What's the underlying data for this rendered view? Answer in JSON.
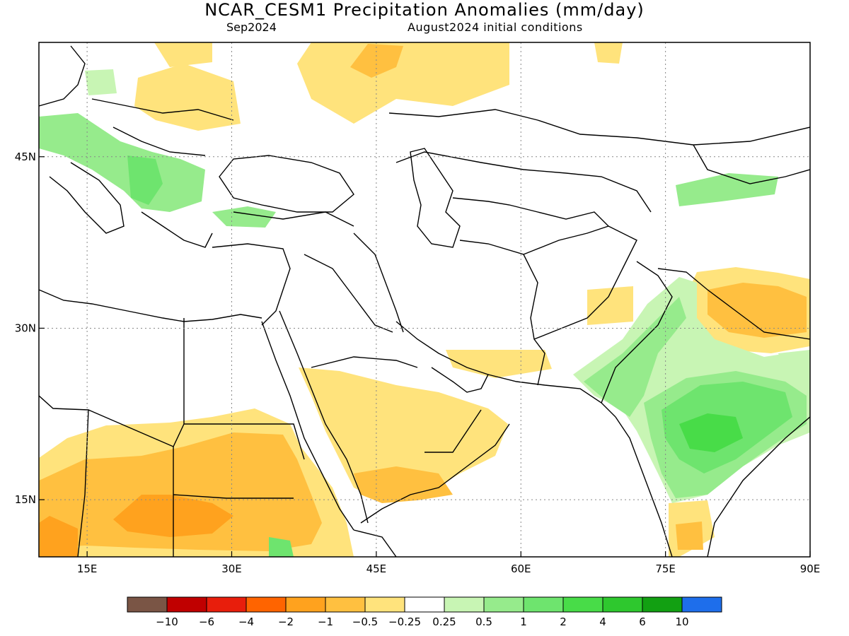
{
  "header": {
    "title": "NCAR_CESM1 Precipitation Anomalies (mm/day)",
    "valid": "Sep2024",
    "init": "August2024 initial conditions"
  },
  "map": {
    "lon_range": [
      10,
      90
    ],
    "lat_range": [
      10,
      55
    ],
    "x_ticks": [
      {
        "lon": 15,
        "label": "15E"
      },
      {
        "lon": 30,
        "label": "30E"
      },
      {
        "lon": 45,
        "label": "45E"
      },
      {
        "lon": 60,
        "label": "60E"
      },
      {
        "lon": 75,
        "label": "75E"
      },
      {
        "lon": 90,
        "label": "90E"
      }
    ],
    "y_ticks": [
      {
        "lat": 45,
        "label": "45N"
      },
      {
        "lat": 30,
        "label": "30N"
      },
      {
        "lat": 15,
        "label": "15N"
      }
    ],
    "gridlines": "dotted"
  },
  "colorbar": {
    "colors": [
      "#7a5545",
      "#c00000",
      "#e81e0c",
      "#ff6400",
      "#ffa21e",
      "#ffc040",
      "#ffe37c",
      "#ffffff",
      "#c8f5b4",
      "#96eb8c",
      "#6ee46e",
      "#48dc48",
      "#2ec82e",
      "#12a012",
      "#1e6eeb"
    ],
    "labels": [
      "−10",
      "−6",
      "−4",
      "−2",
      "−1",
      "−0.5",
      "−0.25",
      "0.25",
      "0.5",
      "1",
      "2",
      "4",
      "6",
      "10"
    ]
  },
  "anomaly_colors": {
    "dry_025": "#ffe37c",
    "dry_05": "#ffc040",
    "dry_1": "#ffa21e",
    "wet_025": "#c8f5b4",
    "wet_05": "#96eb8c",
    "wet_1": "#6ee46e",
    "wet_2": "#48dc48"
  }
}
